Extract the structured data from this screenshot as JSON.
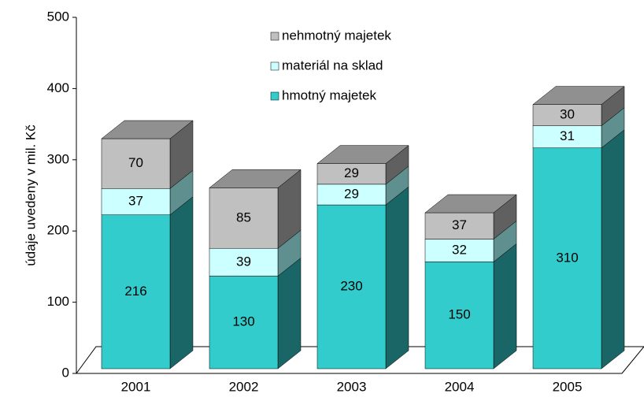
{
  "chart_data": {
    "type": "bar3d_stacked",
    "y_label": "údaje uvedeny v mil. Kč",
    "categories": [
      "2001",
      "2002",
      "2003",
      "2004",
      "2005"
    ],
    "series": [
      {
        "name": "hmotný majetek",
        "color": "#33CCCC",
        "side": "#1A6666",
        "values": [
          216,
          130,
          230,
          150,
          310
        ]
      },
      {
        "name": "materiál na sklad",
        "color": "#CCFFFF",
        "side": "#5F8F8F",
        "values": [
          37,
          39,
          29,
          32,
          31
        ]
      },
      {
        "name": "nehmotný majetek",
        "color": "#C0C0C0",
        "side": "#606060",
        "values": [
          70,
          85,
          29,
          37,
          30
        ]
      }
    ],
    "top_color": "#909090",
    "ylim": [
      0,
      500
    ],
    "yticks": [
      0,
      100,
      200,
      300,
      400,
      500
    ],
    "grid": false
  }
}
